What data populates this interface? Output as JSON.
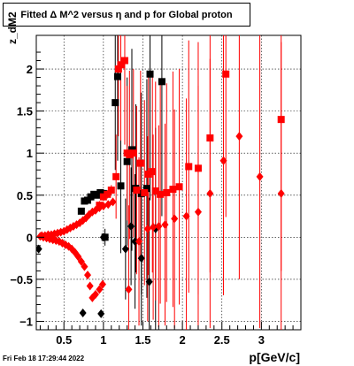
{
  "chart_data": {
    "type": "scatter",
    "title": "Fitted Δ M^2 versus η and p for Global proton",
    "xlabel": "p[GeV/c]",
    "ylabel": "z_dM2",
    "xlim": [
      0.15,
      3.5
    ],
    "ylim": [
      -1.1,
      2.4
    ],
    "x_ticks": [
      "0.5",
      "1",
      "1.5",
      "2",
      "2.5",
      "3"
    ],
    "x_tick_values": [
      0.5,
      1.0,
      1.5,
      2.0,
      2.5,
      3.0
    ],
    "y_ticks": [
      "−1",
      "−0.5",
      "0",
      "0.5",
      "1",
      "1.5",
      "2"
    ],
    "y_tick_values": [
      -1,
      -0.5,
      0,
      0.5,
      1,
      1.5,
      2
    ],
    "grid": true,
    "series": [
      {
        "color": "#000000",
        "marker_style": "square",
        "points": [
          {
            "x": 0.72,
            "y": 0.31,
            "err": 0.02
          },
          {
            "x": 0.76,
            "y": 0.43,
            "err": 0.02
          },
          {
            "x": 0.8,
            "y": 0.44,
            "err": 0.02
          },
          {
            "x": 0.84,
            "y": 0.48,
            "err": 0.03
          },
          {
            "x": 0.88,
            "y": 0.51,
            "err": 0.03
          },
          {
            "x": 0.92,
            "y": 0.5,
            "err": 0.03
          },
          {
            "x": 0.96,
            "y": 0.53,
            "err": 0.04
          },
          {
            "x": 1.0,
            "y": 0.52,
            "err": 0.05
          },
          {
            "x": 1.02,
            "y": 0.0,
            "err": 0.1
          },
          {
            "x": 1.15,
            "y": 1.6,
            "err": 0.8
          },
          {
            "x": 1.18,
            "y": 1.91,
            "err": 1.0
          },
          {
            "x": 1.22,
            "y": 0.61,
            "err": 0.8
          },
          {
            "x": 1.3,
            "y": 0.9,
            "err": 1.0
          },
          {
            "x": 1.36,
            "y": 1.04,
            "err": 1.2
          },
          {
            "x": 1.41,
            "y": 0.58,
            "err": 1.0
          },
          {
            "x": 1.48,
            "y": 0.52,
            "err": 1.2
          },
          {
            "x": 1.55,
            "y": 0.58,
            "err": 1.3
          },
          {
            "x": 1.59,
            "y": 1.94,
            "err": 1.5
          },
          {
            "x": 1.74,
            "y": 1.85,
            "err": 1.6
          }
        ]
      },
      {
        "color": "#000000",
        "marker_style": "diamond",
        "points": [
          {
            "x": 0.18,
            "y": -0.14,
            "err": 0.02
          },
          {
            "x": 0.74,
            "y": -0.9,
            "err": 0.03
          },
          {
            "x": 0.97,
            "y": -0.91,
            "err": 0.04
          },
          {
            "x": 1.0,
            "y": 0.0,
            "err": 0.05
          },
          {
            "x": 1.28,
            "y": -0.14,
            "err": 0.6
          },
          {
            "x": 1.35,
            "y": 0.13,
            "err": 0.7
          },
          {
            "x": 1.4,
            "y": -0.05,
            "err": 0.8
          },
          {
            "x": 1.48,
            "y": -0.25,
            "err": 0.8
          },
          {
            "x": 1.58,
            "y": -0.53,
            "err": 1.0
          },
          {
            "x": 1.66,
            "y": 0.1,
            "err": 1.2
          }
        ]
      },
      {
        "color": "#ff0000",
        "marker_style": "square",
        "points": [
          {
            "x": 0.95,
            "y": 0.38,
            "err": 0.05
          },
          {
            "x": 1.0,
            "y": 0.48,
            "err": 0.05
          },
          {
            "x": 1.05,
            "y": 0.51,
            "err": 0.05
          },
          {
            "x": 1.1,
            "y": 0.56,
            "err": 0.06
          },
          {
            "x": 1.16,
            "y": 0.72,
            "err": 0.5
          },
          {
            "x": 1.19,
            "y": 2.0,
            "err": 0.8
          },
          {
            "x": 1.22,
            "y": 2.05,
            "err": 0.9
          },
          {
            "x": 1.27,
            "y": 2.1,
            "err": 1.0
          },
          {
            "x": 1.3,
            "y": 1.0,
            "err": 0.8
          },
          {
            "x": 1.33,
            "y": 0.98,
            "err": 1.0
          },
          {
            "x": 1.38,
            "y": 1.0,
            "err": 1.0
          },
          {
            "x": 1.42,
            "y": 0.56,
            "err": 1.0
          },
          {
            "x": 1.47,
            "y": 0.88,
            "err": 1.1
          },
          {
            "x": 1.52,
            "y": 0.53,
            "err": 1.1
          },
          {
            "x": 1.57,
            "y": 0.75,
            "err": 1.2
          },
          {
            "x": 1.62,
            "y": 0.78,
            "err": 1.2
          },
          {
            "x": 1.66,
            "y": 0.55,
            "err": 1.3
          },
          {
            "x": 1.72,
            "y": 0.51,
            "err": 1.3
          },
          {
            "x": 1.8,
            "y": 0.53,
            "err": 1.3
          },
          {
            "x": 1.88,
            "y": 0.57,
            "err": 1.4
          },
          {
            "x": 1.96,
            "y": 0.6,
            "err": 1.4
          },
          {
            "x": 2.08,
            "y": 0.84,
            "err": 1.5
          },
          {
            "x": 2.2,
            "y": 0.82,
            "err": 1.5
          },
          {
            "x": 2.35,
            "y": 1.18,
            "err": 1.6
          },
          {
            "x": 2.55,
            "y": 1.94,
            "err": 1.7
          },
          {
            "x": 3.25,
            "y": 1.4,
            "err": 1.8
          }
        ]
      },
      {
        "color": "#ff0000",
        "marker_style": "diamond",
        "points": [
          {
            "x": 0.2,
            "y": 0.01
          },
          {
            "x": 0.24,
            "y": 0.0
          },
          {
            "x": 0.28,
            "y": -0.01
          },
          {
            "x": 0.32,
            "y": -0.02
          },
          {
            "x": 0.36,
            "y": -0.03
          },
          {
            "x": 0.4,
            "y": -0.04
          },
          {
            "x": 0.44,
            "y": -0.05
          },
          {
            "x": 0.48,
            "y": -0.07
          },
          {
            "x": 0.52,
            "y": -0.09
          },
          {
            "x": 0.56,
            "y": -0.11
          },
          {
            "x": 0.6,
            "y": -0.14
          },
          {
            "x": 0.64,
            "y": -0.18
          },
          {
            "x": 0.68,
            "y": -0.23
          },
          {
            "x": 0.72,
            "y": -0.29
          },
          {
            "x": 0.76,
            "y": -0.35
          },
          {
            "x": 0.8,
            "y": -0.45
          },
          {
            "x": 0.83,
            "y": -0.58
          },
          {
            "x": 0.86,
            "y": -0.72
          },
          {
            "x": 0.9,
            "y": -0.68
          },
          {
            "x": 0.95,
            "y": -0.62
          },
          {
            "x": 0.99,
            "y": -0.56
          },
          {
            "x": 0.22,
            "y": 0.02
          },
          {
            "x": 0.26,
            "y": 0.02
          },
          {
            "x": 0.3,
            "y": 0.03
          },
          {
            "x": 0.34,
            "y": 0.03
          },
          {
            "x": 0.38,
            "y": 0.04
          },
          {
            "x": 0.42,
            "y": 0.05
          },
          {
            "x": 0.46,
            "y": 0.06
          },
          {
            "x": 0.5,
            "y": 0.07
          },
          {
            "x": 0.54,
            "y": 0.09
          },
          {
            "x": 0.58,
            "y": 0.11
          },
          {
            "x": 0.62,
            "y": 0.13
          },
          {
            "x": 0.66,
            "y": 0.15
          },
          {
            "x": 0.7,
            "y": 0.17
          },
          {
            "x": 0.74,
            "y": 0.2
          },
          {
            "x": 0.78,
            "y": 0.23
          },
          {
            "x": 0.82,
            "y": 0.27
          },
          {
            "x": 0.86,
            "y": 0.3
          },
          {
            "x": 0.9,
            "y": 0.32
          },
          {
            "x": 0.95,
            "y": 0.35
          },
          {
            "x": 1.0,
            "y": 0.37
          },
          {
            "x": 1.06,
            "y": 0.39
          },
          {
            "x": 1.12,
            "y": 0.42
          },
          {
            "x": 1.32,
            "y": -0.62,
            "err": 1.0
          },
          {
            "x": 1.45,
            "y": -0.05,
            "err": 1.0
          },
          {
            "x": 1.56,
            "y": 0.1,
            "err": 1.1
          },
          {
            "x": 1.63,
            "y": 0.12,
            "err": 1.1
          },
          {
            "x": 1.7,
            "y": 0.13,
            "err": 1.2
          },
          {
            "x": 1.78,
            "y": 0.15,
            "err": 1.2
          },
          {
            "x": 1.9,
            "y": 0.22,
            "err": 1.3
          },
          {
            "x": 2.05,
            "y": 0.25,
            "err": 1.4
          },
          {
            "x": 2.2,
            "y": 0.3,
            "err": 1.5
          },
          {
            "x": 2.35,
            "y": 0.52,
            "err": 1.6
          },
          {
            "x": 2.52,
            "y": 0.91,
            "err": 1.6
          },
          {
            "x": 2.72,
            "y": 1.2,
            "err": 1.7
          },
          {
            "x": 2.98,
            "y": 0.72,
            "err": 1.8
          },
          {
            "x": 3.25,
            "y": 0.52,
            "err": 1.8
          }
        ]
      }
    ]
  },
  "footer": {
    "timestamp": "Fri Feb 18 17:29:44 2022"
  }
}
